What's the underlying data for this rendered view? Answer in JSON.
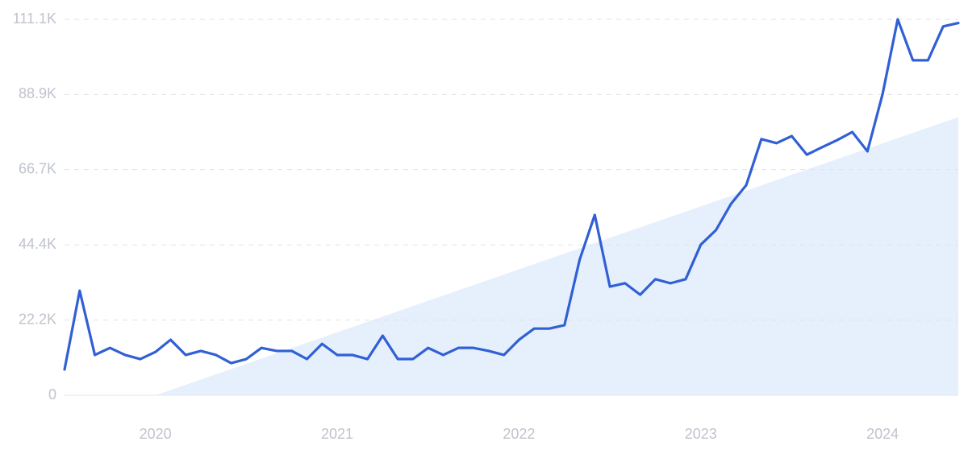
{
  "chart_data": {
    "type": "line",
    "categories": [
      null,
      null,
      null,
      null,
      null,
      null,
      "2020",
      null,
      null,
      null,
      null,
      null,
      null,
      null,
      null,
      null,
      null,
      null,
      "2021",
      null,
      null,
      null,
      null,
      null,
      null,
      null,
      null,
      null,
      null,
      null,
      "2022",
      null,
      null,
      null,
      null,
      null,
      null,
      null,
      null,
      null,
      null,
      null,
      "2023",
      null,
      null,
      null,
      null,
      null,
      null,
      null,
      null,
      null,
      null,
      null,
      "2024",
      null,
      null,
      null,
      null,
      null
    ],
    "series": [
      {
        "color": "#3160d4",
        "values": [
          7600,
          30900,
          11900,
          14000,
          11900,
          10700,
          12800,
          16400,
          11900,
          13100,
          11900,
          9500,
          10700,
          14000,
          13100,
          13100,
          10700,
          15200,
          11900,
          11900,
          10700,
          17600,
          10700,
          10700,
          14000,
          11900,
          14000,
          14000,
          13100,
          11900,
          16400,
          19700,
          19700,
          20700,
          40000,
          53300,
          32100,
          33100,
          29700,
          34300,
          33100,
          34300,
          44500,
          48800,
          56600,
          62100,
          75700,
          74500,
          76600,
          71100,
          73300,
          75400,
          77800,
          72100,
          89000,
          111100,
          99000,
          99000,
          109000,
          110000
        ]
      }
    ],
    "trend": {
      "color": "#e6f0fd",
      "values": [
        null,
        null,
        null,
        null,
        null,
        null,
        0,
        1551,
        3102,
        4653,
        6204,
        7755,
        9306,
        10857,
        12408,
        13959,
        15510,
        17061,
        18612,
        20163,
        21714,
        23265,
        24816,
        26367,
        27918,
        29469,
        31020,
        32571,
        34122,
        35673,
        37224,
        38775,
        40326,
        41877,
        43428,
        44979,
        46530,
        48081,
        49632,
        51183,
        52734,
        54285,
        55836,
        57387,
        58938,
        60489,
        62040,
        63591,
        65142,
        66693,
        68244,
        69795,
        71346,
        72897,
        74448,
        75999,
        77550,
        79101,
        80652,
        82203
      ]
    },
    "ylim": [
      0,
      111100
    ],
    "yticks": [
      0,
      {
        "value": 22200,
        "label": "22.2K"
      },
      {
        "value": 44400,
        "label": "44.4K"
      },
      {
        "value": 66700,
        "label": "66.7K"
      },
      {
        "value": 88900,
        "label": "88.9K"
      },
      {
        "value": 111100,
        "label": "111.1K"
      }
    ],
    "grid": true
  }
}
